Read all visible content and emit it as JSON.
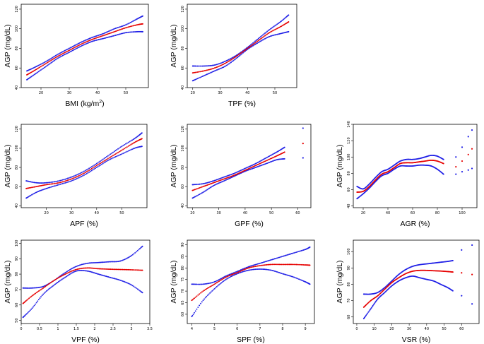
{
  "chart_data": [
    {
      "type": "line",
      "xlabel": "BMI (kg/m",
      "xlabel_sup": "2",
      "xlabel_tail": ")",
      "ylabel": "AGP (mg/dL)",
      "xlim": [
        13,
        58
      ],
      "ylim": [
        40,
        125
      ],
      "xticks": [
        20,
        30,
        40,
        50
      ],
      "yticks": [
        40,
        60,
        80,
        100,
        120
      ],
      "fit_x": [
        15,
        18,
        22,
        26,
        30,
        34,
        38,
        42,
        46,
        50,
        54,
        56
      ],
      "fit_y": [
        53,
        58,
        65,
        72,
        78,
        84,
        89,
        93,
        97,
        101,
        104,
        105
      ],
      "upper_y": [
        57,
        61,
        67,
        74,
        80,
        86,
        91,
        95,
        100,
        104,
        110,
        113
      ],
      "lower_y": [
        48,
        54,
        62,
        70,
        76,
        82,
        87,
        90,
        93,
        96,
        97,
        97
      ]
    },
    {
      "type": "line",
      "xlabel": "TPF (%)",
      "ylabel": "AGP (mg/dL)",
      "xlim": [
        18,
        58
      ],
      "ylim": [
        40,
        125
      ],
      "xticks": [
        20,
        30,
        40,
        50
      ],
      "yticks": [
        40,
        60,
        80,
        100,
        120
      ],
      "fit_x": [
        20,
        24,
        28,
        32,
        36,
        40,
        44,
        48,
        52,
        55
      ],
      "fit_y": [
        55,
        57,
        60,
        65,
        72,
        80,
        88,
        96,
        102,
        107
      ],
      "upper_y": [
        62,
        62,
        63,
        67,
        73,
        81,
        90,
        99,
        107,
        114
      ],
      "lower_y": [
        47,
        52,
        57,
        62,
        70,
        79,
        86,
        92,
        95,
        97
      ]
    },
    {
      "type": "line",
      "xlabel": "APF (%)",
      "ylabel": "AGP (mg/dL)",
      "xlim": [
        10,
        60
      ],
      "ylim": [
        38,
        125
      ],
      "xticks": [
        20,
        30,
        40,
        50
      ],
      "yticks": [
        40,
        60,
        80,
        100,
        120
      ],
      "fit_x": [
        12,
        16,
        20,
        25,
        30,
        35,
        40,
        45,
        50,
        55,
        58
      ],
      "fit_y": [
        58,
        60,
        62,
        64,
        68,
        74,
        82,
        90,
        98,
        106,
        110
      ],
      "upper_y": [
        66,
        64,
        64,
        66,
        70,
        76,
        84,
        93,
        102,
        110,
        116
      ],
      "lower_y": [
        48,
        54,
        58,
        62,
        66,
        72,
        80,
        88,
        94,
        100,
        102
      ]
    },
    {
      "type": "line",
      "xlabel": "GPF (%)",
      "ylabel": "AGP (mg/dL)",
      "xlim": [
        18,
        65
      ],
      "ylim": [
        38,
        125
      ],
      "xticks": [
        20,
        30,
        40,
        50,
        60
      ],
      "yticks": [
        40,
        60,
        80,
        100,
        120
      ],
      "fit_x": [
        20,
        24,
        28,
        32,
        36,
        40,
        44,
        48,
        52,
        55
      ],
      "fit_y": [
        56,
        60,
        64,
        68,
        72,
        77,
        82,
        87,
        92,
        96
      ],
      "upper_y": [
        62,
        63,
        66,
        70,
        74,
        79,
        84,
        90,
        96,
        101
      ],
      "lower_y": [
        48,
        54,
        61,
        66,
        71,
        76,
        80,
        84,
        88,
        89
      ],
      "outlier_x": 62,
      "outlier_fit": 105,
      "outlier_upper": 121,
      "outlier_lower": 90
    },
    {
      "type": "line",
      "xlabel": "AGR (%)",
      "ylabel": "AGP (mg/dL)",
      "xlim": [
        12,
        112
      ],
      "ylim": [
        38,
        140
      ],
      "xticks": [
        20,
        40,
        60,
        80,
        100
      ],
      "yticks": [
        40,
        60,
        80,
        100,
        120,
        140
      ],
      "fit_x": [
        15,
        20,
        25,
        30,
        35,
        40,
        45,
        50,
        55,
        60,
        65,
        70,
        75,
        80,
        85
      ],
      "fit_y": [
        57,
        58,
        64,
        72,
        79,
        82,
        87,
        92,
        93,
        93,
        94,
        95,
        96,
        95,
        92
      ],
      "upper_y": [
        64,
        61,
        67,
        75,
        82,
        85,
        90,
        95,
        97,
        97,
        98,
        100,
        102,
        101,
        97
      ],
      "lower_y": [
        49,
        55,
        62,
        70,
        77,
        80,
        85,
        89,
        89,
        89,
        90,
        90,
        89,
        85,
        79
      ],
      "tail_x": [
        95,
        100,
        105,
        108
      ],
      "tail_fit": [
        88,
        95,
        103,
        110
      ],
      "tail_upper": [
        100,
        112,
        125,
        133
      ],
      "tail_lower": [
        79,
        82,
        84,
        86
      ]
    },
    {
      "type": "line",
      "xlabel": "VPF (%)",
      "ylabel": "AGP (mg/dL)",
      "xlim": [
        0,
        3.5
      ],
      "ylim": [
        48,
        102
      ],
      "xticks": [
        0.0,
        0.5,
        1.0,
        1.5,
        2.0,
        2.5,
        3.0,
        3.5
      ],
      "yticks": [
        50,
        60,
        70,
        80,
        90,
        100
      ],
      "fit_x": [
        0.05,
        0.3,
        0.6,
        0.9,
        1.2,
        1.5,
        1.8,
        2.1,
        2.4,
        2.7,
        3.0,
        3.3
      ],
      "fit_y": [
        61,
        66,
        71,
        76,
        80,
        83,
        84,
        83.5,
        83.2,
        83,
        82.8,
        82.5
      ],
      "upper_y": [
        71,
        71,
        72,
        76,
        81,
        85,
        87,
        87.5,
        88,
        88.5,
        92,
        98
      ],
      "lower_y": [
        52,
        58,
        67,
        73,
        78,
        82,
        82,
        80,
        78,
        76,
        73,
        68
      ]
    },
    {
      "type": "line",
      "xlabel": "SPF (%)",
      "ylabel": "AGP (mg/dL)",
      "xlim": [
        3.8,
        9.4
      ],
      "ylim": [
        56,
        92
      ],
      "xticks": [
        4,
        5,
        6,
        7,
        8,
        9
      ],
      "yticks": [
        60,
        65,
        70,
        75,
        80,
        85,
        90
      ],
      "fit_x": [
        4.0,
        4.5,
        5.0,
        5.5,
        6.0,
        6.5,
        7.0,
        7.5,
        8.0,
        8.5,
        9.0,
        9.2
      ],
      "fit_y": [
        66,
        70,
        73,
        76,
        78,
        80,
        81,
        81.5,
        81.5,
        81.5,
        81.3,
        81.2
      ],
      "upper_y": [
        73,
        73,
        74,
        76.5,
        78.5,
        80.5,
        82,
        83.5,
        85,
        86.5,
        88,
        89
      ],
      "lower_y": [
        59,
        66,
        71,
        75,
        77.5,
        79,
        79.5,
        79,
        77.5,
        76,
        74,
        73
      ]
    },
    {
      "type": "line",
      "xlabel": "VSR (%)",
      "ylabel": "AGP (mg/dL)",
      "xlim": [
        -2,
        70
      ],
      "ylim": [
        56,
        107
      ],
      "xticks": [
        0,
        10,
        20,
        30,
        40,
        50,
        60
      ],
      "yticks": [
        60,
        70,
        80,
        90,
        100
      ],
      "fit_x": [
        4,
        8,
        12,
        16,
        20,
        24,
        28,
        32,
        36,
        40,
        44,
        48,
        52,
        55
      ],
      "fit_y": [
        66,
        70,
        73,
        77,
        81,
        84,
        86.5,
        88,
        88.5,
        88.5,
        88.3,
        88.1,
        87.8,
        87.5
      ],
      "upper_y": [
        74,
        74,
        75,
        78,
        82,
        86,
        89,
        91,
        92,
        92.5,
        93,
        93.5,
        94,
        94.5
      ],
      "lower_y": [
        59,
        65,
        71,
        75,
        79,
        82,
        84,
        85,
        84,
        83,
        82,
        80,
        78,
        76
      ],
      "tail_x": [
        60,
        66
      ],
      "tail_fit": [
        87,
        86
      ],
      "tail_upper": [
        101,
        104
      ],
      "tail_lower": [
        73,
        68
      ]
    }
  ]
}
